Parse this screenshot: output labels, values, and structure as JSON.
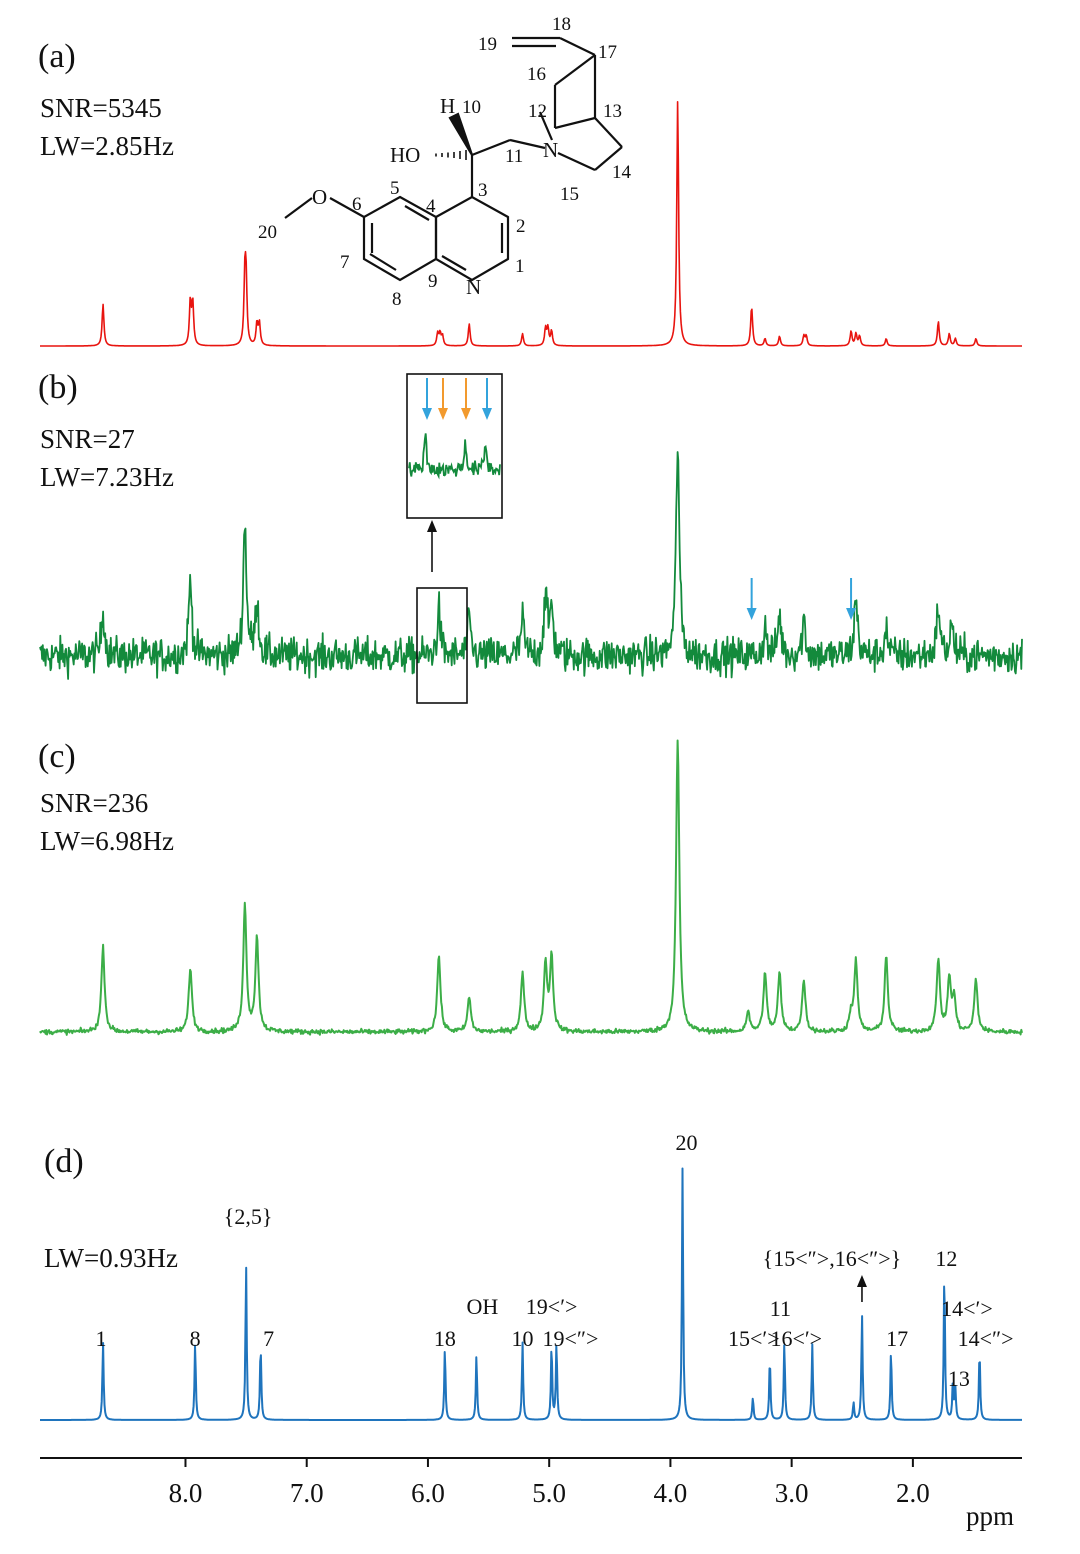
{
  "colors": {
    "spectrum_a": "#e8140f",
    "spectrum_b": "#138a3c",
    "spectrum_c": "#3cae47",
    "spectrum_d": "#1f74bd",
    "arrow_blue": "#33a3dc",
    "arrow_orange": "#f29a2e"
  },
  "molecule": {
    "atom_labels": [
      "1",
      "2",
      "3",
      "4",
      "5",
      "6",
      "7",
      "8",
      "9",
      "10",
      "11",
      "12",
      "13",
      "14",
      "15",
      "16",
      "17",
      "18",
      "19",
      "20"
    ],
    "heteroatoms": {
      "n_ring": "N",
      "n_bridge": "N",
      "o_methoxy": "O",
      "hydroxyl": "HO",
      "h": "H"
    }
  },
  "chart_data": [
    {
      "panel": "(a)",
      "type": "line",
      "stats": [
        "SNR=5345",
        "LW=2.85Hz"
      ],
      "x_unit": "ppm",
      "xlim": [
        9.2,
        1.1
      ],
      "ylim": [
        0,
        100
      ],
      "noise": 0,
      "peaks": [
        {
          "x": 8.68,
          "h": 17
        },
        {
          "x": 7.96,
          "h": 18
        },
        {
          "x": 7.94,
          "h": 17
        },
        {
          "x": 7.51,
          "h": 26
        },
        {
          "x": 7.5,
          "h": 24
        },
        {
          "x": 7.41,
          "h": 9
        },
        {
          "x": 7.39,
          "h": 9
        },
        {
          "x": 5.92,
          "h": 5
        },
        {
          "x": 5.9,
          "h": 5
        },
        {
          "x": 5.88,
          "h": 4
        },
        {
          "x": 5.66,
          "h": 9
        },
        {
          "x": 5.22,
          "h": 5
        },
        {
          "x": 5.03,
          "h": 7
        },
        {
          "x": 5.01,
          "h": 7
        },
        {
          "x": 4.98,
          "h": 6
        },
        {
          "x": 3.94,
          "h": 100
        },
        {
          "x": 3.33,
          "h": 16
        },
        {
          "x": 3.22,
          "h": 3
        },
        {
          "x": 3.1,
          "h": 4
        },
        {
          "x": 2.9,
          "h": 4
        },
        {
          "x": 2.88,
          "h": 4
        },
        {
          "x": 2.51,
          "h": 6
        },
        {
          "x": 2.47,
          "h": 5
        },
        {
          "x": 2.44,
          "h": 4
        },
        {
          "x": 2.22,
          "h": 3
        },
        {
          "x": 1.79,
          "h": 10
        },
        {
          "x": 1.7,
          "h": 5
        },
        {
          "x": 1.65,
          "h": 3
        },
        {
          "x": 1.48,
          "h": 3
        }
      ]
    },
    {
      "panel": "(b)",
      "type": "line",
      "stats": [
        "SNR=27",
        "LW=7.23Hz"
      ],
      "x_unit": "ppm",
      "xlim": [
        9.2,
        1.1
      ],
      "ylim": [
        0,
        100
      ],
      "noise": 5.5,
      "peaks": [
        {
          "x": 8.68,
          "h": 20
        },
        {
          "x": 7.96,
          "h": 33
        },
        {
          "x": 7.51,
          "h": 58
        },
        {
          "x": 7.41,
          "h": 24
        },
        {
          "x": 5.91,
          "h": 20
        },
        {
          "x": 5.66,
          "h": 16
        },
        {
          "x": 5.22,
          "h": 16
        },
        {
          "x": 5.03,
          "h": 26
        },
        {
          "x": 4.98,
          "h": 22
        },
        {
          "x": 3.94,
          "h": 93
        },
        {
          "x": 3.22,
          "h": 12
        },
        {
          "x": 3.1,
          "h": 18
        },
        {
          "x": 2.9,
          "h": 16
        },
        {
          "x": 2.47,
          "h": 26
        },
        {
          "x": 2.22,
          "h": 12
        },
        {
          "x": 1.79,
          "h": 22
        },
        {
          "x": 1.68,
          "h": 14
        }
      ],
      "inset": {
        "arrow_colors": [
          "arrow_blue",
          "arrow_orange",
          "arrow_orange",
          "arrow_blue"
        ]
      },
      "blue_arrows_ppm": [
        3.33,
        2.51
      ]
    },
    {
      "panel": "(c)",
      "type": "line",
      "stats": [
        "SNR=236",
        "LW=6.98Hz"
      ],
      "x_unit": "ppm",
      "xlim": [
        9.2,
        1.1
      ],
      "ylim": [
        0,
        100
      ],
      "noise": 0.6,
      "peaks": [
        {
          "x": 8.68,
          "h": 29
        },
        {
          "x": 7.96,
          "h": 22
        },
        {
          "x": 7.51,
          "h": 43
        },
        {
          "x": 7.41,
          "h": 32
        },
        {
          "x": 5.91,
          "h": 26
        },
        {
          "x": 5.66,
          "h": 12
        },
        {
          "x": 5.22,
          "h": 20
        },
        {
          "x": 5.03,
          "h": 23
        },
        {
          "x": 4.98,
          "h": 25
        },
        {
          "x": 3.94,
          "h": 100
        },
        {
          "x": 3.36,
          "h": 7
        },
        {
          "x": 3.22,
          "h": 20
        },
        {
          "x": 3.1,
          "h": 20
        },
        {
          "x": 2.9,
          "h": 18
        },
        {
          "x": 2.51,
          "h": 6
        },
        {
          "x": 2.47,
          "h": 24
        },
        {
          "x": 2.22,
          "h": 26
        },
        {
          "x": 1.79,
          "h": 25
        },
        {
          "x": 1.7,
          "h": 18
        },
        {
          "x": 1.66,
          "h": 11
        },
        {
          "x": 1.48,
          "h": 18
        }
      ]
    },
    {
      "panel": "(d)",
      "type": "line",
      "stats": [
        "LW=0.93Hz"
      ],
      "x_unit": "ppm",
      "xlim": [
        9.2,
        1.1
      ],
      "ylim": [
        0,
        100
      ],
      "noise": 0,
      "peaks": [
        {
          "x": 8.68,
          "h": 31
        },
        {
          "x": 7.92,
          "h": 31
        },
        {
          "x": 7.5,
          "h": 62
        },
        {
          "x": 7.38,
          "h": 30
        },
        {
          "x": 5.86,
          "h": 29
        },
        {
          "x": 5.6,
          "h": 26
        },
        {
          "x": 5.22,
          "h": 31
        },
        {
          "x": 4.98,
          "h": 30
        },
        {
          "x": 4.94,
          "h": 31
        },
        {
          "x": 3.9,
          "h": 100
        },
        {
          "x": 3.32,
          "h": 9
        },
        {
          "x": 3.18,
          "h": 25
        },
        {
          "x": 3.06,
          "h": 31
        },
        {
          "x": 2.83,
          "h": 30
        },
        {
          "x": 2.49,
          "h": 7
        },
        {
          "x": 2.42,
          "h": 42
        },
        {
          "x": 2.18,
          "h": 28
        },
        {
          "x": 1.74,
          "h": 60
        },
        {
          "x": 1.67,
          "h": 16
        },
        {
          "x": 1.65,
          "h": 12
        },
        {
          "x": 1.45,
          "h": 28
        }
      ],
      "peak_labels": [
        {
          "text": "1",
          "x": 8.68
        },
        {
          "text": "8",
          "x": 7.92
        },
        {
          "text": "{2,5}",
          "x": 7.5
        },
        {
          "text": "7",
          "x": 7.38
        },
        {
          "text": "18",
          "x": 5.86
        },
        {
          "text": "OH",
          "x": 5.6
        },
        {
          "text": "10",
          "x": 5.22
        },
        {
          "text": "19<′>",
          "x": 4.98
        },
        {
          "text": "19<″>",
          "x": 4.94
        },
        {
          "text": "20",
          "x": 3.9
        },
        {
          "text": "15<′>",
          "x": 3.18
        },
        {
          "text": "11",
          "x": 3.06
        },
        {
          "text": "16<′>",
          "x": 2.83
        },
        {
          "text": "{15<″>,16<″>}",
          "x": 2.42
        },
        {
          "text": "17",
          "x": 2.18
        },
        {
          "text": "12",
          "x": 1.74
        },
        {
          "text": "14<′>",
          "x": 1.62
        },
        {
          "text": "13",
          "x": 1.67
        },
        {
          "text": "14<″>",
          "x": 1.45
        }
      ],
      "xticks": [
        8.0,
        7.0,
        6.0,
        5.0,
        4.0,
        3.0,
        2.0
      ],
      "xtick_labels": [
        "8.0",
        "7.0",
        "6.0",
        "5.0",
        "4.0",
        "3.0",
        "2.0"
      ],
      "xlabel": "ppm"
    }
  ]
}
